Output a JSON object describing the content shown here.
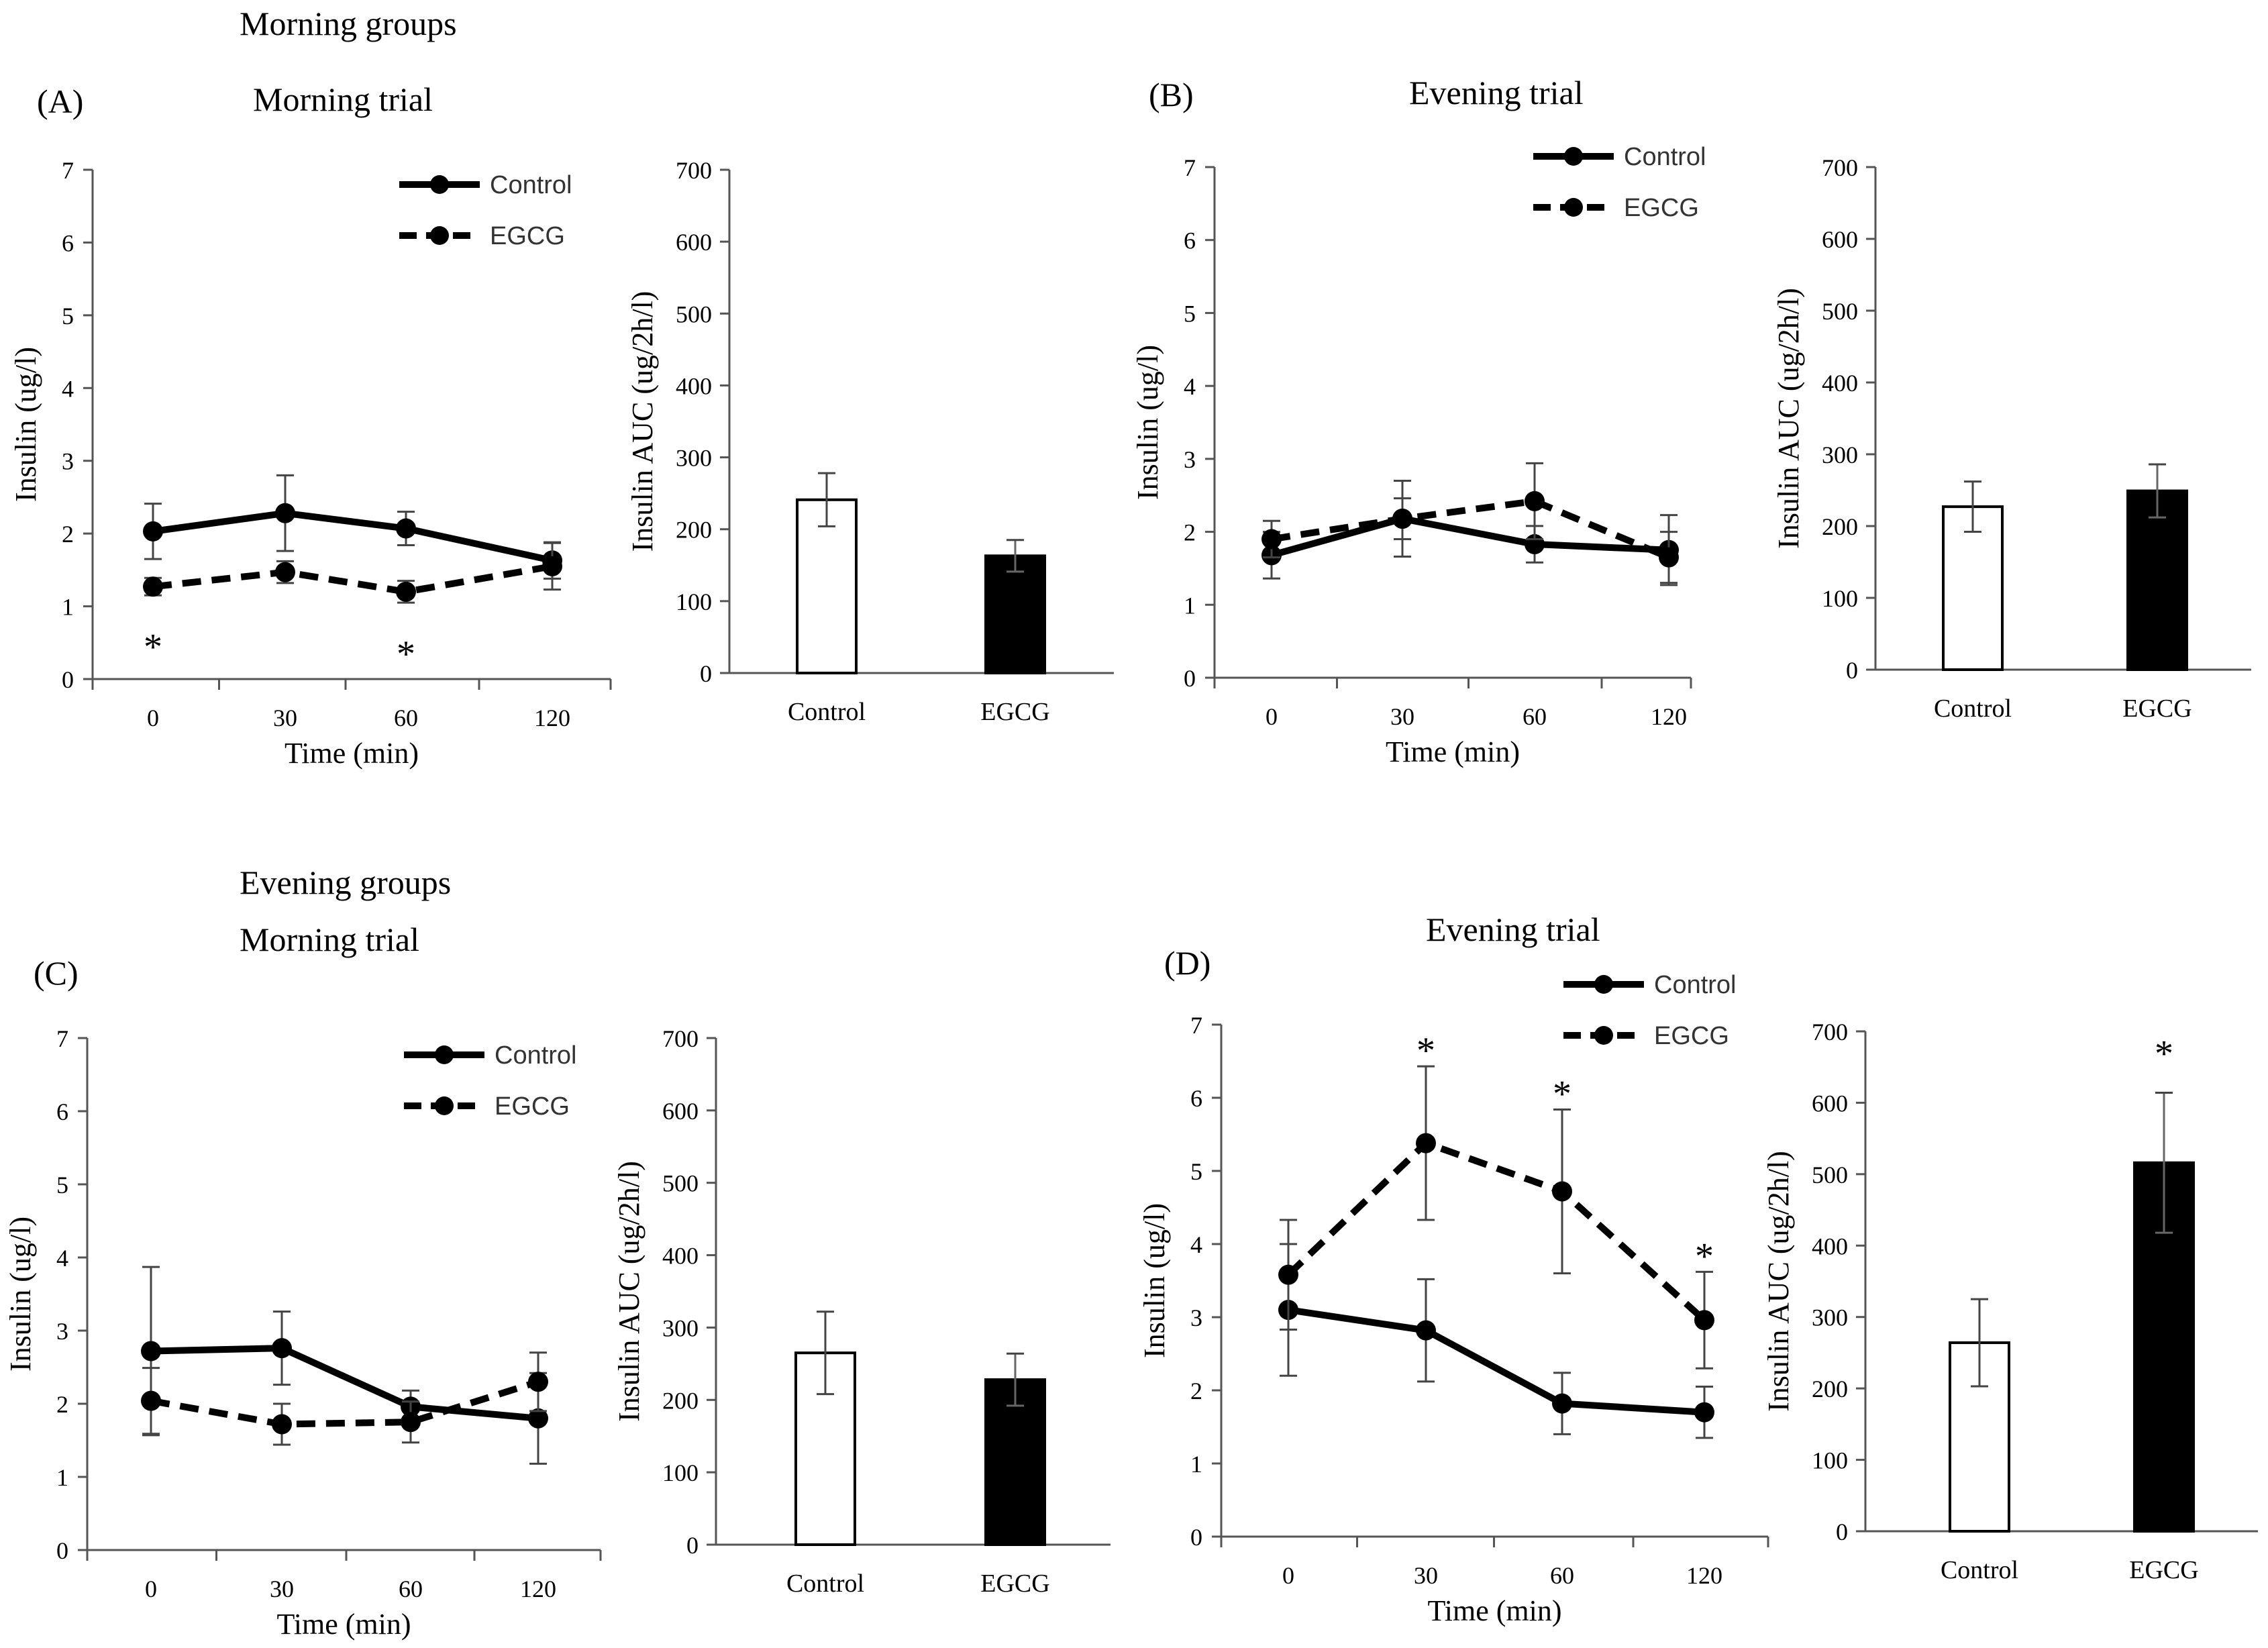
{
  "headings": {
    "morning_groups": "Morning  groups",
    "evening_groups": "Evening groups"
  },
  "panels": [
    {
      "label": "(A)",
      "title": "Morning trial"
    },
    {
      "label": "(B)",
      "title": "Evening trial"
    },
    {
      "label": "(C)",
      "title": "Morning trial"
    },
    {
      "label": "(D)",
      "title": "Evening trial"
    }
  ],
  "colors": {
    "axis": "#555555",
    "line": "#000000",
    "bar_control": "#ffffff",
    "bar_egcg": "#000000",
    "error": "#444444"
  },
  "chart_data": [
    {
      "type": "line",
      "panel": "(A)",
      "subtitle": "Morning trial",
      "categories": [
        "0",
        "30",
        "60",
        "120"
      ],
      "xlabel": "Time (min)",
      "ylabel": "Insulin (ug/l)",
      "ylim": [
        0,
        7
      ],
      "yticks": [
        "0",
        "1",
        "2",
        "3",
        "4",
        "5",
        "6",
        "7"
      ],
      "legend_position": "top-right",
      "series": [
        {
          "name": "Control",
          "style": "solid",
          "values": [
            2.03,
            2.28,
            2.07,
            1.63
          ],
          "errors": [
            0.38,
            0.52,
            0.23,
            0.25
          ],
          "star": [
            false,
            false,
            false,
            false
          ]
        },
        {
          "name": "EGCG",
          "style": "dashed",
          "values": [
            1.27,
            1.47,
            1.2,
            1.55
          ],
          "errors": [
            0.12,
            0.15,
            0.15,
            0.32
          ],
          "star": [
            true,
            false,
            true,
            false
          ]
        }
      ]
    },
    {
      "type": "bar",
      "panel": "(A)",
      "categories": [
        "Control",
        "EGCG"
      ],
      "values": [
        241,
        163
      ],
      "errors": [
        37,
        22
      ],
      "star": [
        false,
        false
      ],
      "ylabel": "Insulin AUC (ug/2h/l)",
      "ylim": [
        0,
        700
      ],
      "yticks": [
        "0",
        "100",
        "200",
        "300",
        "400",
        "500",
        "600",
        "700"
      ]
    },
    {
      "type": "line",
      "panel": "(B)",
      "subtitle": "Evening trial",
      "categories": [
        "0",
        "30",
        "60",
        "120"
      ],
      "xlabel": "Time (min)",
      "ylabel": "Insulin (ug/l)",
      "ylim": [
        0,
        7
      ],
      "yticks": [
        "0",
        "1",
        "2",
        "3",
        "4",
        "5",
        "6",
        "7"
      ],
      "legend_position": "top-right",
      "series": [
        {
          "name": "Control",
          "style": "solid",
          "values": [
            1.68,
            2.18,
            1.83,
            1.75
          ],
          "errors": [
            0.32,
            0.52,
            0.25,
            0.48
          ],
          "star": [
            false,
            false,
            false,
            false
          ]
        },
        {
          "name": "EGCG",
          "style": "dashed",
          "values": [
            1.9,
            2.18,
            2.42,
            1.65
          ],
          "errors": [
            0.25,
            0.28,
            0.52,
            0.35
          ],
          "star": [
            false,
            false,
            false,
            false
          ]
        }
      ]
    },
    {
      "type": "bar",
      "panel": "(B)",
      "categories": [
        "Control",
        "EGCG"
      ],
      "values": [
        227,
        249
      ],
      "errors": [
        35,
        37
      ],
      "star": [
        false,
        false
      ],
      "ylabel": "Insulin AUC (ug/2h/l)",
      "ylim": [
        0,
        700
      ],
      "yticks": [
        "0",
        "100",
        "200",
        "300",
        "400",
        "500",
        "600",
        "700"
      ]
    },
    {
      "type": "line",
      "panel": "(C)",
      "subtitle": "Morning trial",
      "categories": [
        "0",
        "30",
        "60",
        "120"
      ],
      "xlabel": "Time (min)",
      "ylabel": "Insulin (ug/l)",
      "ylim": [
        0,
        7
      ],
      "yticks": [
        "0",
        "1",
        "2",
        "3",
        "4",
        "5",
        "6",
        "7"
      ],
      "legend_position": "top-right",
      "series": [
        {
          "name": "Control",
          "style": "solid",
          "values": [
            2.72,
            2.76,
            1.96,
            1.8
          ],
          "errors": [
            1.15,
            0.5,
            0.22,
            0.62
          ],
          "star": [
            false,
            false,
            false,
            false
          ]
        },
        {
          "name": "EGCG",
          "style": "dashed",
          "values": [
            2.04,
            1.72,
            1.75,
            2.3
          ],
          "errors": [
            0.45,
            0.28,
            0.28,
            0.4
          ],
          "star": [
            false,
            false,
            false,
            false
          ]
        }
      ]
    },
    {
      "type": "bar",
      "panel": "(C)",
      "categories": [
        "Control",
        "EGCG"
      ],
      "values": [
        265,
        228
      ],
      "errors": [
        57,
        36
      ],
      "star": [
        false,
        false
      ],
      "ylabel": "Insulin AUC (ug/2h/l)",
      "ylim": [
        0,
        700
      ],
      "yticks": [
        "0",
        "100",
        "200",
        "300",
        "400",
        "500",
        "600",
        "700"
      ]
    },
    {
      "type": "line",
      "panel": "(D)",
      "subtitle": "Evening trial",
      "categories": [
        "0",
        "30",
        "60",
        "120"
      ],
      "xlabel": "Time (min)",
      "ylabel": "Insulin (ug/l)",
      "ylim": [
        0,
        7
      ],
      "yticks": [
        "0",
        "1",
        "2",
        "3",
        "4",
        "5",
        "6",
        "7"
      ],
      "legend_position": "top-right",
      "series": [
        {
          "name": "Control",
          "style": "solid",
          "values": [
            3.1,
            2.82,
            1.82,
            1.7
          ],
          "errors": [
            0.9,
            0.7,
            0.42,
            0.35
          ],
          "star": [
            false,
            false,
            false,
            false
          ]
        },
        {
          "name": "EGCG",
          "style": "dashed",
          "values": [
            3.58,
            5.38,
            4.72,
            2.96
          ],
          "errors": [
            0.75,
            1.05,
            1.12,
            0.66
          ],
          "star": [
            false,
            true,
            true,
            true
          ]
        }
      ]
    },
    {
      "type": "bar",
      "panel": "(D)",
      "categories": [
        "Control",
        "EGCG"
      ],
      "values": [
        264,
        516
      ],
      "errors": [
        61,
        98
      ],
      "star": [
        false,
        true
      ],
      "ylabel": "Insulin AUC (ug/2h/l)",
      "ylim": [
        0,
        700
      ],
      "yticks": [
        "0",
        "100",
        "200",
        "300",
        "400",
        "500",
        "600",
        "700"
      ]
    }
  ]
}
